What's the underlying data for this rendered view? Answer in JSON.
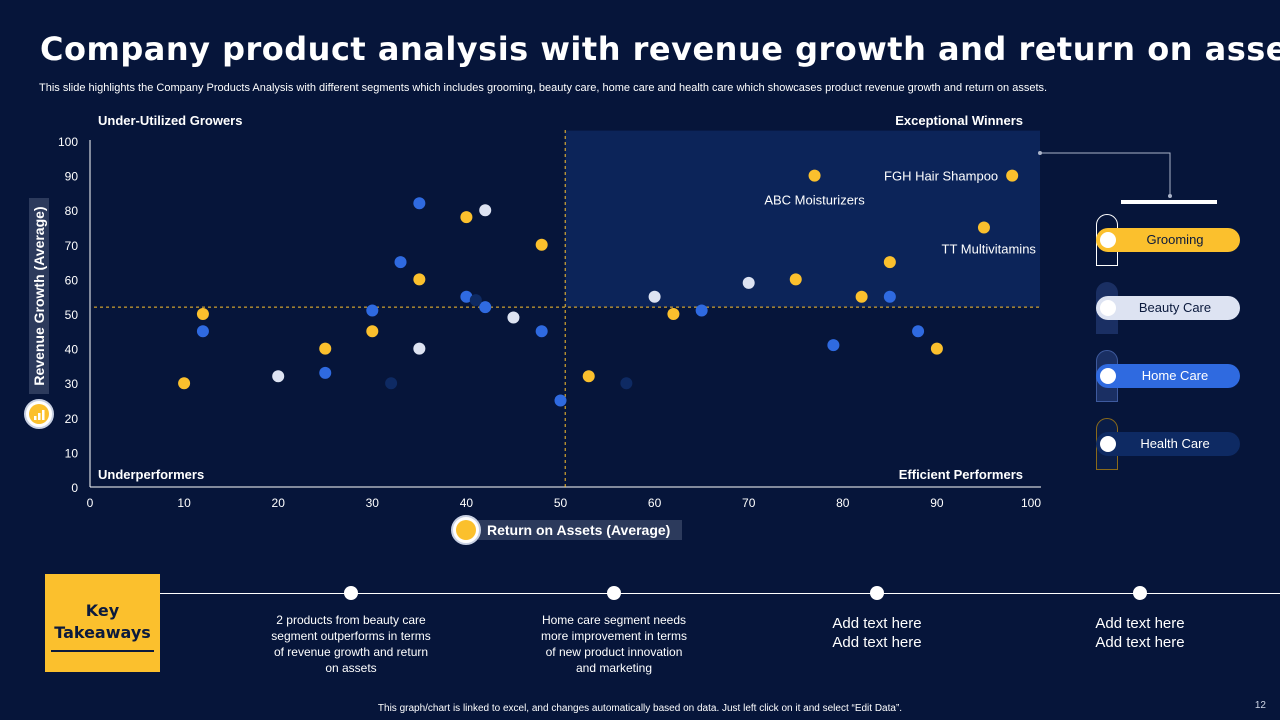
{
  "title": "Company product analysis with revenue growth and return on assets",
  "subtitle": "This slide highlights the Company Products Analysis with different segments which includes grooming, beauty care, home care and health care which showcases product revenue growth and return on assets.",
  "colors": {
    "background": "#06153a",
    "grooming": "#fbc02d",
    "beauty_care": "#dde3f2",
    "home_care": "#2f6ae0",
    "health_care": "#0e2a63",
    "highlight_region": "#0c2459"
  },
  "chart_data": {
    "type": "scatter",
    "xlabel": "Return on Assets (Average)",
    "ylabel": "Revenue Growth (Average)",
    "xlim": [
      0,
      100
    ],
    "ylim": [
      0,
      100
    ],
    "xticks": [
      "0",
      "10",
      "20",
      "30",
      "40",
      "50",
      "60",
      "70",
      "80",
      "90",
      "100"
    ],
    "yticks": [
      "0",
      "10",
      "20",
      "30",
      "40",
      "50",
      "60",
      "70",
      "80",
      "90",
      "100"
    ],
    "grid": false,
    "x_divider": 50.5,
    "y_divider": 52,
    "highlight_region": {
      "x": [
        50.5,
        100
      ],
      "y": [
        52,
        103
      ]
    },
    "quadrants": {
      "top_left": "Under-Utilized Growers",
      "top_right": "Exceptional Winners",
      "bottom_left": "Underperformers",
      "bottom_right": "Efficient Performers"
    },
    "annotations": [
      {
        "text": "FGH Hair Shampoo",
        "x": 98,
        "y": 90
      },
      {
        "text": "ABC Moisturizers",
        "x": 77,
        "y": 90
      },
      {
        "text": "TT Multivitamins",
        "x": 95,
        "y": 75
      }
    ],
    "legend_position": "right",
    "series": [
      {
        "name": "Grooming",
        "color": "#fbc02d",
        "points": [
          [
            10,
            30
          ],
          [
            12,
            50
          ],
          [
            25,
            40
          ],
          [
            30,
            45
          ],
          [
            35,
            60
          ],
          [
            40,
            78
          ],
          [
            48,
            70
          ],
          [
            53,
            32
          ],
          [
            62,
            50
          ],
          [
            75,
            60
          ],
          [
            77,
            90
          ],
          [
            82,
            55
          ],
          [
            85,
            65
          ],
          [
            90,
            40
          ],
          [
            95,
            75
          ],
          [
            98,
            90
          ]
        ]
      },
      {
        "name": "Beauty Care",
        "color": "#dde3f2",
        "points": [
          [
            20,
            32
          ],
          [
            35,
            40
          ],
          [
            42,
            80
          ],
          [
            45,
            49
          ],
          [
            60,
            55
          ],
          [
            70,
            59
          ]
        ]
      },
      {
        "name": "Home Care",
        "color": "#2f6ae0",
        "points": [
          [
            12,
            45
          ],
          [
            25,
            33
          ],
          [
            30,
            51
          ],
          [
            33,
            65
          ],
          [
            35,
            82
          ],
          [
            40,
            55
          ],
          [
            42,
            52
          ],
          [
            48,
            45
          ],
          [
            50,
            25
          ],
          [
            65,
            51
          ],
          [
            79,
            41
          ],
          [
            85,
            55
          ],
          [
            88,
            45
          ]
        ]
      },
      {
        "name": "Health Care",
        "color": "#0e2a63",
        "points": [
          [
            32,
            30
          ],
          [
            41,
            54
          ],
          [
            57,
            30
          ]
        ]
      }
    ]
  },
  "legend": [
    {
      "label": "Grooming"
    },
    {
      "label": "Beauty Care"
    },
    {
      "label": "Home Care"
    },
    {
      "label": "Health Care"
    }
  ],
  "takeaways": {
    "label_line1": "Key",
    "label_line2": "Takeaways",
    "items": [
      "2 products from beauty care\nsegment outperforms in terms\nof revenue growth and return\non assets",
      "Home care segment needs\nmore improvement in terms\nof new product innovation\nand marketing",
      "Add text here\nAdd text here",
      "Add text here\nAdd text here"
    ]
  },
  "footer": "This graph/chart is linked to excel, and changes automatically based on data. Just left click on it and select “Edit Data”.",
  "page_number": "12"
}
